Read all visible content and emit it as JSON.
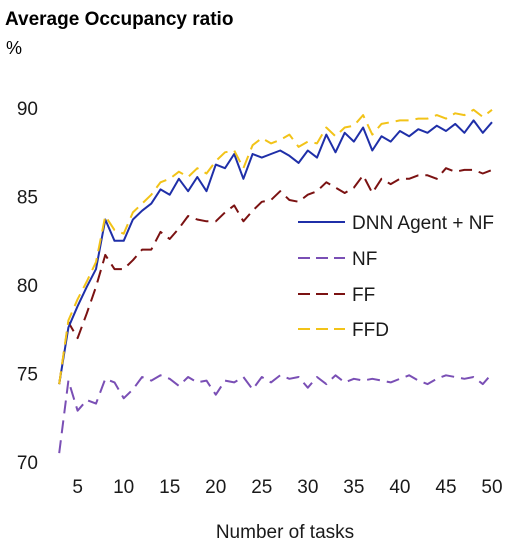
{
  "chart_data": {
    "type": "line",
    "title": "Average Occupancy ratio",
    "ylabel": "%",
    "xlabel": "Number of tasks",
    "xlim": [
      2,
      50
    ],
    "ylim": [
      70,
      90
    ],
    "x_ticks": [
      5,
      10,
      15,
      20,
      25,
      30,
      35,
      40,
      45,
      50
    ],
    "y_ticks": [
      70,
      75,
      80,
      85,
      90
    ],
    "grid": false,
    "legend_position": "right",
    "x": [
      3,
      4,
      5,
      6,
      7,
      8,
      9,
      10,
      11,
      12,
      13,
      14,
      15,
      16,
      17,
      18,
      19,
      20,
      21,
      22,
      23,
      24,
      25,
      26,
      27,
      28,
      29,
      30,
      31,
      32,
      33,
      34,
      35,
      36,
      37,
      38,
      39,
      40,
      41,
      42,
      43,
      44,
      45,
      46,
      47,
      48,
      49,
      50
    ],
    "series": [
      {
        "name": "DNN Agent + NF",
        "color": "#1f2fa8",
        "dash": "solid",
        "values": [
          74.4,
          77.6,
          78.8,
          79.9,
          80.9,
          83.7,
          82.5,
          82.5,
          83.7,
          84.2,
          84.6,
          85.4,
          85.1,
          86.0,
          85.3,
          86.1,
          85.3,
          86.8,
          86.6,
          87.4,
          86.0,
          87.4,
          87.2,
          87.4,
          87.6,
          87.3,
          86.9,
          87.6,
          87.2,
          88.5,
          87.5,
          88.6,
          88.1,
          88.9,
          87.6,
          88.4,
          88.1,
          88.7,
          88.4,
          88.8,
          88.6,
          89.0,
          88.7,
          89.1,
          88.6,
          89.3,
          88.6,
          89.2
        ]
      },
      {
        "name": "NF",
        "color": "#7a4fb5",
        "dash": "dashed",
        "values": [
          70.5,
          74.6,
          72.9,
          73.5,
          73.3,
          74.7,
          74.5,
          73.6,
          74.1,
          74.8,
          74.6,
          74.9,
          74.7,
          74.3,
          74.8,
          74.5,
          74.6,
          73.8,
          74.6,
          74.5,
          74.8,
          74.1,
          74.8,
          74.5,
          74.9,
          74.7,
          74.8,
          74.2,
          74.8,
          74.4,
          74.9,
          74.5,
          74.7,
          74.6,
          74.7,
          74.6,
          74.5,
          74.7,
          74.9,
          74.6,
          74.4,
          74.7,
          74.9,
          74.8,
          74.7,
          74.8,
          74.4,
          75.0
        ]
      },
      {
        "name": "FF",
        "color": "#7b1212",
        "dash": "dashed",
        "values": [
          74.4,
          77.9,
          77.0,
          78.4,
          79.9,
          81.7,
          80.9,
          80.9,
          81.4,
          82.0,
          82.0,
          83.0,
          82.6,
          83.2,
          83.9,
          83.7,
          83.6,
          83.6,
          84.1,
          84.5,
          83.6,
          84.2,
          84.7,
          84.8,
          85.3,
          84.8,
          84.7,
          85.1,
          85.3,
          85.8,
          85.5,
          85.2,
          85.5,
          86.2,
          85.2,
          86.0,
          85.7,
          86.0,
          86.0,
          86.2,
          86.2,
          86.0,
          86.6,
          86.4,
          86.5,
          86.5,
          86.3,
          86.5
        ]
      },
      {
        "name": "FFD",
        "color": "#f2c318",
        "dash": "dashed",
        "values": [
          74.4,
          78.0,
          79.2,
          80.2,
          81.3,
          83.9,
          83.1,
          82.9,
          84.1,
          84.6,
          85.1,
          85.8,
          86.0,
          86.4,
          86.1,
          86.6,
          86.3,
          87.0,
          87.5,
          87.6,
          86.6,
          87.9,
          88.3,
          88.0,
          88.2,
          88.5,
          87.8,
          88.1,
          88.0,
          88.9,
          88.4,
          88.9,
          89.0,
          89.6,
          88.5,
          89.1,
          89.2,
          89.3,
          89.3,
          89.4,
          89.4,
          89.6,
          89.4,
          89.7,
          89.6,
          89.9,
          89.5,
          89.9
        ]
      }
    ]
  }
}
